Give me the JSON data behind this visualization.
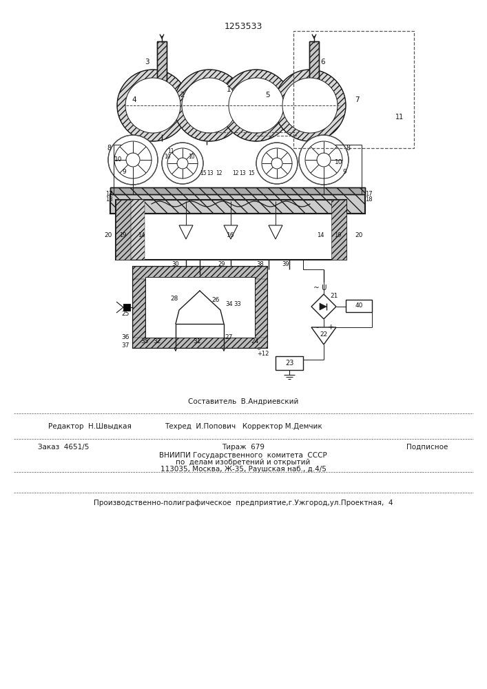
{
  "title": "1253533",
  "bg_color": "#f5f5f0",
  "line_color": "#1a1a1a",
  "footer_fontsize": 7.5,
  "title_fontsize": 9,
  "editor_left": "Редактор  Н.Швыдкая",
  "editor_center_top": "Составитель  В.Андриевский",
  "editor_center_bot": "Техред  И.Попович   Корректор М.Демчик",
  "order_left": "Заказ  4651/5",
  "order_center": "Тираж  679",
  "order_right": "Подписное",
  "vniipi1": "ВНИИПИ Государственного  комитета  СССР",
  "vniipi2": "по  делам изобретений и открытий",
  "vniipi3": "113035, Москва, Ж-35, Раушская наб., д.4/5",
  "print_footer": "Производственно-полиграфическое  предприятие,г.Ужгород,ул.Проектная,  4"
}
